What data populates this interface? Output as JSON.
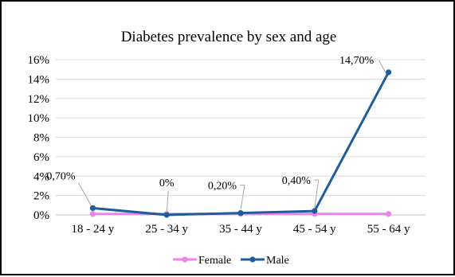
{
  "chart_data": {
    "type": "line",
    "title": "Diabetes prevalence by sex and age",
    "categories": [
      "18 - 24 y",
      "25 - 34 y",
      "35 - 44 y",
      "45 - 54 y",
      "55 - 64 y"
    ],
    "y_ticks": [
      "0%",
      "2%",
      "4%",
      "6%",
      "8%",
      "10%",
      "12%",
      "14%",
      "16%"
    ],
    "ylim": [
      0,
      16
    ],
    "y_unit": "%",
    "grid": "horizontal",
    "legend_position": "bottom",
    "series": [
      {
        "name": "Female",
        "color": "#ee82ee",
        "values": [
          0.1,
          0.1,
          0.1,
          0.1,
          0.1
        ],
        "data_labels": [
          "",
          "",
          "",
          "",
          ""
        ]
      },
      {
        "name": "Male",
        "color": "#1f5c99",
        "values": [
          0.7,
          0.0,
          0.2,
          0.4,
          14.7
        ],
        "data_labels": [
          "0,70%",
          "0%",
          "0,20%",
          "0,40%",
          "14,70%"
        ]
      }
    ]
  }
}
